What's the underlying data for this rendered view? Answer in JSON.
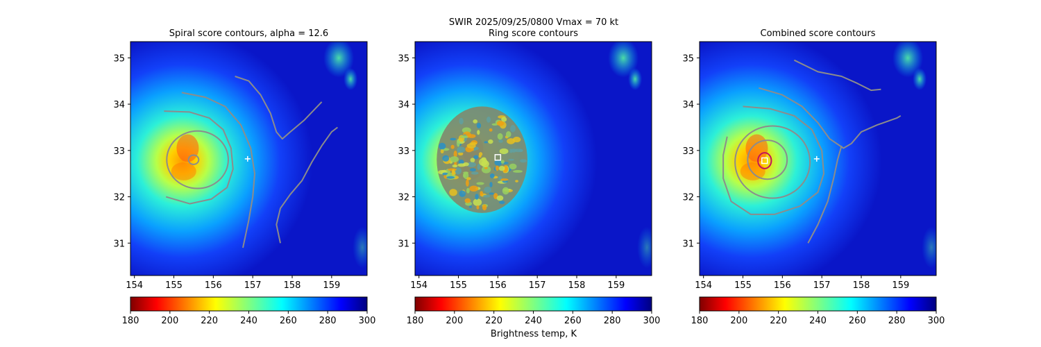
{
  "figure": {
    "suptitle_line1": "SWIR  2025/09/25/0800    Vmax = 70 kt",
    "colorbar_label": "Brightness temp, K",
    "colormap": "jet",
    "line_color": "#8c8c8c"
  },
  "chart_data": [
    {
      "type": "heatmap",
      "title": "Spiral score contours, alpha = 12.6",
      "xlim": [
        153.9,
        159.9
      ],
      "ylim": [
        30.3,
        35.35
      ],
      "xticks": [
        154,
        155,
        156,
        157,
        158,
        159
      ],
      "yticks": [
        31,
        32,
        33,
        34,
        35
      ],
      "marker": {
        "symbol": "+",
        "x": 156.87,
        "y": 32.82,
        "color": "#ffffff"
      },
      "contours": [
        {
          "kind": "closed",
          "cx": 155.5,
          "cy": 32.8,
          "rx": 0.13,
          "ry": 0.1
        },
        {
          "kind": "closed",
          "cx": 155.6,
          "cy": 32.8,
          "rx": 0.78,
          "ry": 0.62
        },
        {
          "kind": "path",
          "points": [
            [
              154.75,
              33.85
            ],
            [
              155.4,
              33.83
            ],
            [
              155.9,
              33.7
            ],
            [
              156.25,
              33.45
            ],
            [
              156.45,
              33.05
            ],
            [
              156.5,
              32.6
            ],
            [
              156.35,
              32.2
            ],
            [
              155.95,
              31.95
            ],
            [
              155.4,
              31.85
            ],
            [
              154.8,
              32.0
            ]
          ]
        },
        {
          "kind": "path",
          "points": [
            [
              155.2,
              34.25
            ],
            [
              155.8,
              34.15
            ],
            [
              156.3,
              33.95
            ],
            [
              156.7,
              33.55
            ],
            [
              156.95,
              33.05
            ],
            [
              157.05,
              32.5
            ],
            [
              157.0,
              32.0
            ],
            [
              156.9,
              31.5
            ],
            [
              156.75,
              30.9
            ]
          ]
        },
        {
          "kind": "path",
          "points": [
            [
              156.55,
              34.6
            ],
            [
              156.9,
              34.5
            ],
            [
              157.2,
              34.2
            ],
            [
              157.45,
              33.8
            ],
            [
              157.6,
              33.4
            ],
            [
              157.75,
              33.25
            ],
            [
              157.95,
              33.4
            ],
            [
              158.3,
              33.65
            ],
            [
              158.75,
              34.05
            ]
          ]
        },
        {
          "kind": "path",
          "points": [
            [
              157.7,
              31.0
            ],
            [
              157.6,
              31.4
            ],
            [
              157.7,
              31.75
            ],
            [
              157.95,
              32.05
            ],
            [
              158.25,
              32.35
            ],
            [
              158.5,
              32.75
            ],
            [
              158.75,
              33.1
            ],
            [
              159.0,
              33.4
            ],
            [
              159.15,
              33.5
            ]
          ]
        }
      ]
    },
    {
      "type": "heatmap",
      "title": "Ring score contours",
      "xlim": [
        153.9,
        159.9
      ],
      "ylim": [
        30.3,
        35.35
      ],
      "xticks": [
        154,
        155,
        156,
        157,
        158,
        159
      ],
      "yticks": [
        31,
        32,
        33,
        34,
        35
      ],
      "marker": {
        "symbol": "square",
        "x": 156.0,
        "y": 32.85,
        "color": "#ffffff"
      },
      "ring_region": {
        "cx": 155.6,
        "cy": 32.8,
        "r_deg": 1.15
      }
    },
    {
      "type": "heatmap",
      "title": "Combined score contours",
      "xlim": [
        153.9,
        159.9
      ],
      "ylim": [
        30.3,
        35.35
      ],
      "xticks": [
        154,
        155,
        156,
        157,
        158,
        159
      ],
      "yticks": [
        31,
        32,
        33,
        34,
        35
      ],
      "marker": {
        "symbol": "+",
        "x": 156.87,
        "y": 32.82,
        "color": "#ffffff"
      },
      "center_box": {
        "x": 155.55,
        "y": 32.78
      },
      "center_circle": {
        "cx": 155.55,
        "cy": 32.78,
        "r_deg": 0.17,
        "color": "#c0145a"
      },
      "contours": [
        {
          "kind": "closed",
          "cx": 155.62,
          "cy": 32.8,
          "rx": 0.5,
          "ry": 0.42
        },
        {
          "kind": "closed",
          "cx": 155.75,
          "cy": 32.75,
          "rx": 0.95,
          "ry": 0.78
        },
        {
          "kind": "path",
          "points": [
            [
              155.0,
              33.95
            ],
            [
              155.7,
              33.9
            ],
            [
              156.3,
              33.75
            ],
            [
              156.75,
              33.45
            ],
            [
              157.0,
              33.0
            ],
            [
              157.05,
              32.5
            ],
            [
              156.9,
              32.1
            ],
            [
              156.45,
              31.8
            ],
            [
              155.8,
              31.62
            ],
            [
              155.2,
              31.62
            ],
            [
              154.7,
              31.9
            ],
            [
              154.5,
              32.4
            ],
            [
              154.5,
              32.9
            ],
            [
              154.6,
              33.3
            ]
          ]
        },
        {
          "kind": "path",
          "points": [
            [
              155.4,
              34.35
            ],
            [
              156.0,
              34.2
            ],
            [
              156.5,
              33.95
            ],
            [
              156.9,
              33.6
            ],
            [
              157.2,
              33.25
            ],
            [
              157.55,
              33.05
            ],
            [
              157.75,
              33.15
            ],
            [
              158.0,
              33.4
            ],
            [
              158.4,
              33.55
            ],
            [
              158.9,
              33.7
            ],
            [
              159.0,
              33.75
            ]
          ]
        },
        {
          "kind": "path",
          "points": [
            [
              156.3,
              34.95
            ],
            [
              156.9,
              34.7
            ],
            [
              157.5,
              34.6
            ],
            [
              157.9,
              34.45
            ],
            [
              158.25,
              34.3
            ],
            [
              158.5,
              34.32
            ]
          ]
        },
        {
          "kind": "path",
          "points": [
            [
              156.65,
              31.0
            ],
            [
              156.9,
              31.4
            ],
            [
              157.15,
              31.9
            ],
            [
              157.3,
              32.4
            ],
            [
              157.4,
              32.8
            ],
            [
              157.5,
              33.1
            ]
          ]
        }
      ]
    }
  ],
  "colorbars": [
    {
      "min": 180,
      "max": 300,
      "ticks": [
        180,
        200,
        220,
        240,
        260,
        280,
        300
      ]
    },
    {
      "min": 180,
      "max": 300,
      "ticks": [
        180,
        200,
        220,
        240,
        260,
        280,
        300
      ]
    },
    {
      "min": 180,
      "max": 300,
      "ticks": [
        180,
        200,
        220,
        240,
        260,
        280,
        300
      ]
    }
  ]
}
